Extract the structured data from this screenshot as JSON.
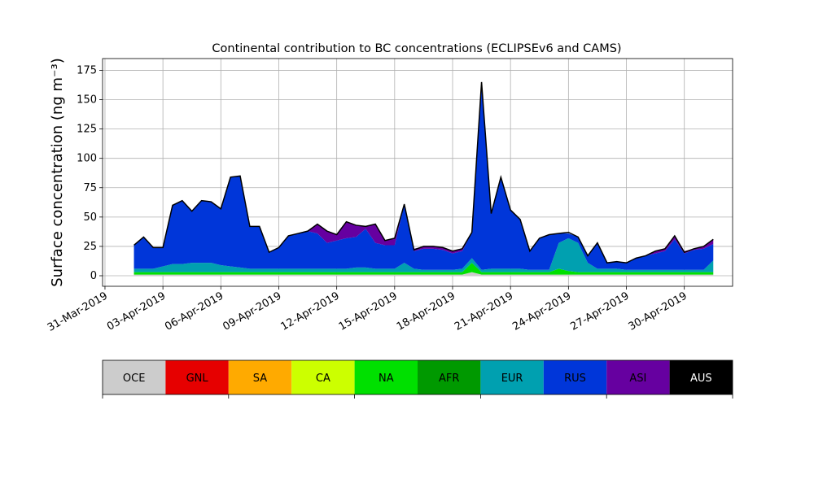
{
  "chart_data": {
    "type": "area",
    "stacked": true,
    "title": "Continental contribution to BC concentrations (ECLIPSEv6 and CAMS)",
    "ylabel": "Surface concentration (ng m⁻³)",
    "xlabel": "",
    "x_range": [
      "2019-03-30T21:00",
      "2019-05-02T12:00"
    ],
    "ylim": [
      -9,
      185
    ],
    "x_tick_labels": [
      "31-Mar-2019",
      "03-Apr-2019",
      "06-Apr-2019",
      "09-Apr-2019",
      "12-Apr-2019",
      "15-Apr-2019",
      "18-Apr-2019",
      "21-Apr-2019",
      "24-Apr-2019",
      "27-Apr-2019",
      "30-Apr-2019"
    ],
    "x_tick_dates": [
      "2019-03-31",
      "2019-04-03",
      "2019-04-06",
      "2019-04-09",
      "2019-04-12",
      "2019-04-15",
      "2019-04-18",
      "2019-04-21",
      "2019-04-24",
      "2019-04-27",
      "2019-04-30"
    ],
    "y_ticks": [
      0,
      25,
      50,
      75,
      100,
      125,
      150,
      175
    ],
    "grid": true,
    "legend_position": "bottom",
    "x": [
      "2019-04-01T12:00",
      "2019-04-02T00:00",
      "2019-04-02T12:00",
      "2019-04-03T00:00",
      "2019-04-03T12:00",
      "2019-04-04T00:00",
      "2019-04-04T12:00",
      "2019-04-05T00:00",
      "2019-04-05T12:00",
      "2019-04-06T00:00",
      "2019-04-06T12:00",
      "2019-04-07T00:00",
      "2019-04-07T12:00",
      "2019-04-08T00:00",
      "2019-04-08T12:00",
      "2019-04-09T00:00",
      "2019-04-09T12:00",
      "2019-04-10T00:00",
      "2019-04-10T12:00",
      "2019-04-11T00:00",
      "2019-04-11T12:00",
      "2019-04-12T00:00",
      "2019-04-12T12:00",
      "2019-04-13T00:00",
      "2019-04-13T12:00",
      "2019-04-14T00:00",
      "2019-04-14T12:00",
      "2019-04-15T00:00",
      "2019-04-15T12:00",
      "2019-04-16T00:00",
      "2019-04-16T12:00",
      "2019-04-17T00:00",
      "2019-04-17T12:00",
      "2019-04-18T00:00",
      "2019-04-18T12:00",
      "2019-04-19T00:00",
      "2019-04-19T12:00",
      "2019-04-20T00:00",
      "2019-04-20T12:00",
      "2019-04-21T00:00",
      "2019-04-21T12:00",
      "2019-04-22T00:00",
      "2019-04-22T12:00",
      "2019-04-23T00:00",
      "2019-04-23T12:00",
      "2019-04-24T00:00",
      "2019-04-24T12:00",
      "2019-04-25T00:00",
      "2019-04-25T12:00",
      "2019-04-26T00:00",
      "2019-04-26T12:00",
      "2019-04-27T00:00",
      "2019-04-27T12:00",
      "2019-04-28T00:00",
      "2019-04-28T12:00",
      "2019-04-29T00:00",
      "2019-04-29T12:00",
      "2019-04-30T00:00",
      "2019-04-30T12:00",
      "2019-05-01T00:00",
      "2019-05-01T12:00"
    ],
    "series": [
      {
        "name": "OCE",
        "color": "#cccccc",
        "values": [
          1,
          1,
          1,
          1,
          1,
          1,
          1,
          1,
          1,
          1,
          1,
          1,
          1,
          1,
          1,
          1,
          1,
          1,
          1,
          1,
          1,
          1,
          1,
          1,
          1,
          1,
          1,
          1,
          1,
          1,
          1,
          1,
          1,
          1,
          1,
          3,
          1,
          1,
          1,
          1,
          1,
          1,
          1,
          1,
          1,
          1,
          1,
          1,
          1,
          1,
          1,
          1,
          1,
          1,
          1,
          1,
          1,
          1,
          1,
          1,
          1
        ]
      },
      {
        "name": "GNL",
        "color": "#e60000",
        "values": [
          0,
          0,
          0,
          0,
          0,
          0,
          0,
          0,
          0,
          0,
          0,
          0,
          0,
          0,
          0,
          0,
          0,
          0,
          0,
          0,
          0,
          0,
          0,
          0,
          0,
          0,
          0,
          0,
          0,
          0,
          0,
          0,
          0,
          0,
          0,
          0,
          0,
          0,
          0,
          0,
          0,
          0,
          0,
          0,
          0,
          0,
          0,
          0,
          0,
          0,
          0,
          0,
          0,
          0,
          0,
          0,
          0,
          0,
          0,
          0,
          0
        ]
      },
      {
        "name": "SA",
        "color": "#ffaa00",
        "values": [
          0,
          0,
          0,
          0,
          0,
          0,
          0,
          0,
          0,
          0,
          0,
          0,
          0,
          0,
          0,
          0,
          0,
          0,
          0,
          0,
          0,
          0,
          0,
          0,
          0,
          0,
          0,
          0,
          0,
          0,
          0,
          0,
          0,
          0,
          0,
          0,
          0,
          0,
          0,
          0,
          0,
          0,
          0,
          0,
          0,
          0,
          0,
          0,
          0,
          0,
          0,
          0,
          0,
          0,
          0,
          0,
          0,
          0,
          0,
          0,
          0
        ]
      },
      {
        "name": "CA",
        "color": "#ccff00",
        "values": [
          0,
          0,
          0,
          0,
          0,
          0,
          0,
          0,
          0,
          0,
          0,
          0,
          0,
          0,
          0,
          0,
          0,
          0,
          0,
          0,
          0,
          0,
          0,
          0,
          0,
          0,
          0,
          0,
          0,
          0,
          0,
          0,
          0,
          0,
          0,
          0,
          0,
          0,
          0,
          0,
          0,
          0,
          0,
          0,
          0,
          0,
          0,
          0,
          0,
          0,
          0,
          0,
          0,
          0,
          0,
          0,
          0,
          0,
          0,
          0,
          0
        ]
      },
      {
        "name": "NA",
        "color": "#00e000",
        "values": [
          2,
          2,
          2,
          2,
          2,
          2,
          2,
          2,
          2,
          2,
          2,
          2,
          2,
          2,
          2,
          2,
          2,
          2,
          2,
          2,
          2,
          2,
          2,
          2,
          2,
          2,
          2,
          2,
          2,
          2,
          2,
          2,
          2,
          2,
          2,
          8,
          2,
          2,
          2,
          2,
          2,
          2,
          2,
          2,
          5,
          3,
          2,
          2,
          2,
          2,
          2,
          2,
          2,
          2,
          2,
          2,
          2,
          2,
          2,
          2,
          2
        ]
      },
      {
        "name": "AFR",
        "color": "#009900",
        "values": [
          0,
          0,
          0,
          0,
          0,
          0,
          0,
          0,
          0,
          0,
          0,
          0,
          0,
          0,
          0,
          0,
          0,
          0,
          0,
          0,
          0,
          0,
          0,
          0,
          0,
          0,
          0,
          0,
          0,
          0,
          0,
          0,
          0,
          0,
          0,
          0,
          0,
          0,
          0,
          0,
          0,
          0,
          0,
          0,
          0,
          0,
          0,
          0,
          0,
          0,
          0,
          0,
          0,
          0,
          0,
          0,
          0,
          0,
          0,
          0,
          0
        ]
      },
      {
        "name": "EUR",
        "color": "#00a0b0",
        "values": [
          3,
          3,
          3,
          5,
          7,
          7,
          8,
          8,
          8,
          6,
          5,
          4,
          3,
          3,
          3,
          3,
          3,
          3,
          3,
          3,
          3,
          3,
          3,
          4,
          4,
          3,
          3,
          3,
          8,
          3,
          2,
          2,
          2,
          2,
          3,
          4,
          2,
          3,
          3,
          3,
          3,
          2,
          2,
          2,
          22,
          28,
          25,
          8,
          3,
          3,
          3,
          2,
          2,
          2,
          2,
          2,
          2,
          2,
          2,
          2,
          10
        ]
      },
      {
        "name": "RUS",
        "color": "#0036d9",
        "values": [
          20,
          27,
          18,
          16,
          50,
          54,
          44,
          53,
          52,
          48,
          76,
          78,
          36,
          36,
          14,
          18,
          28,
          30,
          32,
          30,
          22,
          24,
          26,
          26,
          33,
          22,
          20,
          20,
          50,
          15,
          18,
          18,
          17,
          14,
          15,
          22,
          160,
          47,
          78,
          50,
          42,
          16,
          27,
          30,
          8,
          4,
          5,
          6,
          22,
          5,
          6,
          6,
          10,
          12,
          14,
          16,
          26,
          14,
          17,
          18,
          14
        ]
      },
      {
        "name": "ASI",
        "color": "#6600a0",
        "values": [
          0,
          0,
          0,
          0,
          0,
          0,
          0,
          0,
          0,
          0,
          0,
          0,
          0,
          0,
          0,
          0,
          0,
          0,
          0,
          8,
          10,
          5,
          14,
          10,
          2,
          16,
          4,
          6,
          0,
          2,
          2,
          2,
          2,
          2,
          2,
          0,
          0,
          0,
          0,
          0,
          0,
          0,
          0,
          0,
          0,
          0,
          0,
          0,
          0,
          0,
          0,
          0,
          0,
          0,
          2,
          2,
          3,
          2,
          1,
          2,
          4
        ]
      },
      {
        "name": "AUS",
        "color": "#000000",
        "values": [
          0,
          0,
          0,
          0,
          0,
          0,
          0,
          0,
          0,
          0,
          0,
          0,
          0,
          0,
          0,
          0,
          0,
          0,
          0,
          0,
          0,
          0,
          0,
          0,
          0,
          0,
          0,
          0,
          0,
          0,
          0,
          0,
          0,
          0,
          0,
          0,
          0,
          0,
          0,
          0,
          0,
          0,
          0,
          0,
          0,
          0,
          0,
          0,
          0,
          0,
          0,
          0,
          0,
          0,
          0,
          0,
          0,
          0,
          0,
          0,
          0
        ]
      }
    ],
    "total": [
      26,
      33,
      24,
      24,
      60,
      64,
      55,
      64,
      63,
      57,
      84,
      85,
      42,
      42,
      20,
      24,
      34,
      36,
      38,
      44,
      38,
      35,
      46,
      43,
      42,
      44,
      30,
      32,
      61,
      22,
      25,
      25,
      24,
      21,
      23,
      37,
      165,
      53,
      84,
      56,
      48,
      21,
      32,
      35,
      36,
      37,
      33,
      17,
      28,
      11,
      12,
      11,
      15,
      17,
      21,
      23,
      34,
      20,
      23,
      25,
      31
    ]
  }
}
